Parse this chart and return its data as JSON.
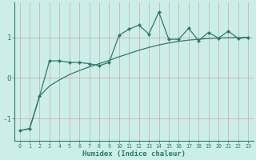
{
  "xlabel": "Humidex (Indice chaleur)",
  "x_values": [
    0,
    1,
    2,
    3,
    4,
    5,
    6,
    7,
    8,
    9,
    10,
    11,
    12,
    13,
    14,
    15,
    16,
    17,
    18,
    19,
    20,
    21,
    22,
    23
  ],
  "jagged_y": [
    -1.3,
    -1.25,
    -0.45,
    0.42,
    0.42,
    0.38,
    0.38,
    0.35,
    0.3,
    0.38,
    1.05,
    1.2,
    1.3,
    1.08,
    1.62,
    0.95,
    0.95,
    1.22,
    0.92,
    1.12,
    0.98,
    1.15,
    0.97,
    1.0
  ],
  "smooth_y": [
    -1.3,
    -1.25,
    -0.45,
    -0.2,
    -0.05,
    0.08,
    0.18,
    0.27,
    0.35,
    0.43,
    0.52,
    0.6,
    0.68,
    0.75,
    0.81,
    0.86,
    0.9,
    0.93,
    0.95,
    0.97,
    0.98,
    0.99,
    0.99,
    1.0
  ],
  "bg_color": "#cceee8",
  "line_color": "#2d7a6e",
  "grid_color_v": "#c8a8a8",
  "grid_color_h": "#c8a8a8",
  "yticks": [
    -1,
    0,
    1
  ],
  "ylim": [
    -1.55,
    1.85
  ],
  "xlim": [
    -0.5,
    23.5
  ]
}
